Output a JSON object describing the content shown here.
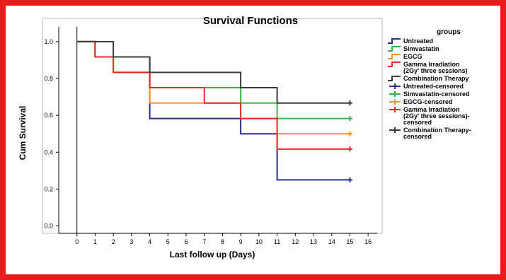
{
  "chart_data": {
    "type": "line",
    "step": true,
    "title": "Survival Functions",
    "xlabel": "Last follow up (Days)",
    "ylabel": "Cum Survival",
    "xlim": [
      -1,
      16.5
    ],
    "ylim": [
      -0.04,
      1.08
    ],
    "xticks": [
      "0",
      "1",
      "2",
      "3",
      "4",
      "5",
      "6",
      "7",
      "8",
      "9",
      "10",
      "11",
      "12",
      "13",
      "14",
      "15",
      "16"
    ],
    "yticks": [
      "0.0",
      "0.2",
      "0.4",
      "0.6",
      "0.8",
      "1.0"
    ],
    "grid": false,
    "legend_title": "groups",
    "legend_position": "right",
    "frame_color": "#e81c1c",
    "series": [
      {
        "name": "Untreated",
        "color": "#2a2f86",
        "points": [
          [
            0,
            1.0
          ],
          [
            1,
            1.0
          ],
          [
            1,
            0.917
          ],
          [
            2,
            0.917
          ],
          [
            4,
            0.917
          ],
          [
            4,
            0.583
          ],
          [
            9,
            0.583
          ],
          [
            9,
            0.5
          ],
          [
            11,
            0.5
          ],
          [
            11,
            0.25
          ],
          [
            15,
            0.25
          ]
        ],
        "censored": [
          [
            15,
            0.25
          ]
        ]
      },
      {
        "name": "Simvastatin",
        "color": "#3ab54a",
        "points": [
          [
            0,
            1.0
          ],
          [
            1,
            1.0
          ],
          [
            1,
            0.917
          ],
          [
            2,
            0.917
          ],
          [
            2,
            0.833
          ],
          [
            4,
            0.833
          ],
          [
            4,
            0.75
          ],
          [
            9,
            0.75
          ],
          [
            9,
            0.667
          ],
          [
            11,
            0.667
          ],
          [
            11,
            0.583
          ],
          [
            15,
            0.583
          ]
        ],
        "censored": [
          [
            15,
            0.583
          ]
        ]
      },
      {
        "name": "EGCG",
        "color": "#f7941d",
        "points": [
          [
            0,
            1.0
          ],
          [
            1,
            1.0
          ],
          [
            1,
            0.917
          ],
          [
            2,
            0.917
          ],
          [
            2,
            0.833
          ],
          [
            4,
            0.833
          ],
          [
            4,
            0.667
          ],
          [
            9,
            0.667
          ],
          [
            9,
            0.583
          ],
          [
            11,
            0.583
          ],
          [
            11,
            0.5
          ],
          [
            15,
            0.5
          ]
        ],
        "censored": [
          [
            15,
            0.5
          ]
        ]
      },
      {
        "name": "Gamma Irradiation\n(2Gy' three sessions)",
        "color": "#e8282b",
        "points": [
          [
            0,
            1.0
          ],
          [
            1,
            1.0
          ],
          [
            1,
            0.917
          ],
          [
            2,
            0.917
          ],
          [
            2,
            0.833
          ],
          [
            4,
            0.833
          ],
          [
            4,
            0.75
          ],
          [
            7,
            0.75
          ],
          [
            7,
            0.667
          ],
          [
            9,
            0.667
          ],
          [
            9,
            0.583
          ],
          [
            11,
            0.583
          ],
          [
            11,
            0.417
          ],
          [
            15,
            0.417
          ]
        ],
        "censored": [
          [
            15,
            0.417
          ]
        ]
      },
      {
        "name": "Combination Therapy",
        "color": "#3d3d3d",
        "points": [
          [
            0,
            1.0
          ],
          [
            2,
            1.0
          ],
          [
            2,
            0.917
          ],
          [
            4,
            0.917
          ],
          [
            4,
            0.833
          ],
          [
            9,
            0.833
          ],
          [
            9,
            0.75
          ],
          [
            11,
            0.75
          ],
          [
            11,
            0.667
          ],
          [
            15,
            0.667
          ]
        ],
        "censored": [
          [
            15,
            0.667
          ]
        ]
      }
    ],
    "legend": [
      {
        "label": "Untreated",
        "color": "#2a2f86",
        "kind": "line"
      },
      {
        "label": "Simvastatin",
        "color": "#3ab54a",
        "kind": "line"
      },
      {
        "label": "EGCG",
        "color": "#f7941d",
        "kind": "line"
      },
      {
        "label": "Gamma Irradiation\n(2Gy' three sessions)",
        "color": "#e8282b",
        "kind": "line"
      },
      {
        "label": "Combination Therapy",
        "color": "#3d3d3d",
        "kind": "line"
      },
      {
        "label": "Untreated-censored",
        "color": "#2a2f86",
        "kind": "censored"
      },
      {
        "label": "Simvastatin-censored",
        "color": "#3ab54a",
        "kind": "censored"
      },
      {
        "label": "EGCG-censored",
        "color": "#f7941d",
        "kind": "censored"
      },
      {
        "label": "Gamma Irradiation\n(2Gy' three sessions)-\ncensored",
        "color": "#e8282b",
        "kind": "censored"
      },
      {
        "label": "Combination Therapy-\ncensored",
        "color": "#3d3d3d",
        "kind": "censored"
      }
    ]
  }
}
